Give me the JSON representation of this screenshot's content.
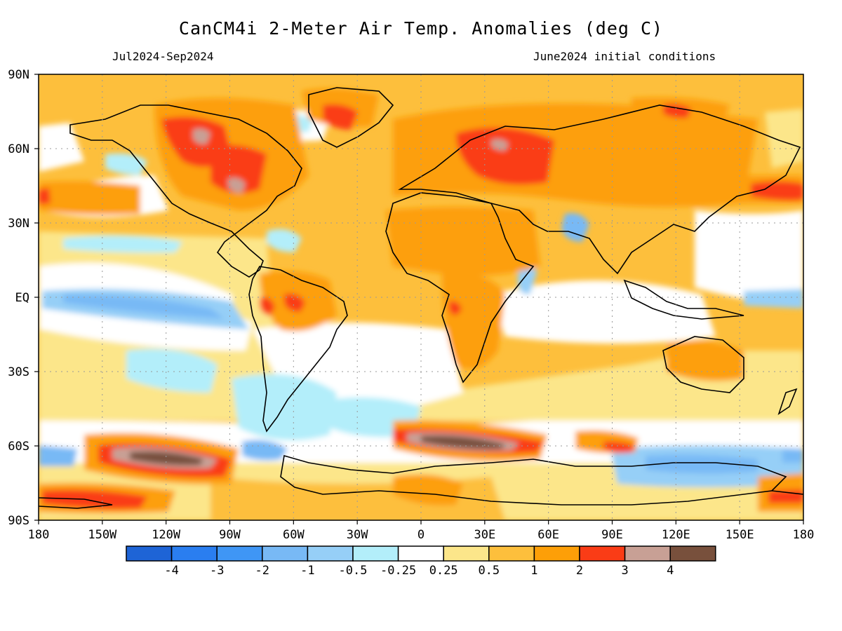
{
  "title": "CanCM4i 2-Meter Air Temp. Anomalies (deg C)",
  "period": "Jul2024-Sep2024",
  "init": "June2024 initial conditions",
  "x_ticks": [
    "180",
    "150W",
    "120W",
    "90W",
    "60W",
    "30W",
    "0",
    "30E",
    "60E",
    "90E",
    "120E",
    "150E",
    "180"
  ],
  "y_ticks": [
    "90N",
    "60N",
    "30N",
    "EQ",
    "30S",
    "60S",
    "90S"
  ],
  "colorbar": {
    "colors": [
      "#1e64d6",
      "#2a7ef0",
      "#3f96f5",
      "#78b9f5",
      "#96cff7",
      "#b3eefa",
      "#ffffff",
      "#fce68a",
      "#fdbf3c",
      "#fd9f08",
      "#fa3c16",
      "#c8a095",
      "#78503c"
    ],
    "labels": [
      "-4",
      "-3",
      "-2",
      "-1",
      "-0.5",
      "-0.25",
      "0.25",
      "0.5",
      "1",
      "2",
      "3",
      "4"
    ]
  },
  "chart_data": {
    "type": "heatmap",
    "title": "CanCM4i 2-Meter Air Temp. Anomalies (deg C)",
    "period": "Jul2024-Sep2024",
    "initial_conditions": "June2024 initial conditions",
    "units": "deg C",
    "lon_range": [
      -180,
      180
    ],
    "lat_range": [
      -90,
      90
    ],
    "contour_levels": [
      -4,
      -3,
      -2,
      -1,
      -0.5,
      -0.25,
      0.25,
      0.5,
      1,
      2,
      3,
      4
    ],
    "grid": "dotted",
    "features": [
      {
        "region": "Central/eastern Canada",
        "anomaly": "2 to 4"
      },
      {
        "region": "Northwest Russia / Scandinavia",
        "anomaly": "2 to 4"
      },
      {
        "region": "Southern Ocean south of Africa",
        "anomaly": "> 4"
      },
      {
        "region": "Southern Pacific near 60S 120W",
        "anomaly": "> 4"
      },
      {
        "region": "North Africa / Middle East",
        "anomaly": "1 to 2"
      },
      {
        "region": "Tropical Pacific",
        "anomaly": "-0.5 to -1"
      },
      {
        "region": "Antarctic coast south of Australia",
        "anomaly": "-0.5 to -2"
      }
    ]
  }
}
